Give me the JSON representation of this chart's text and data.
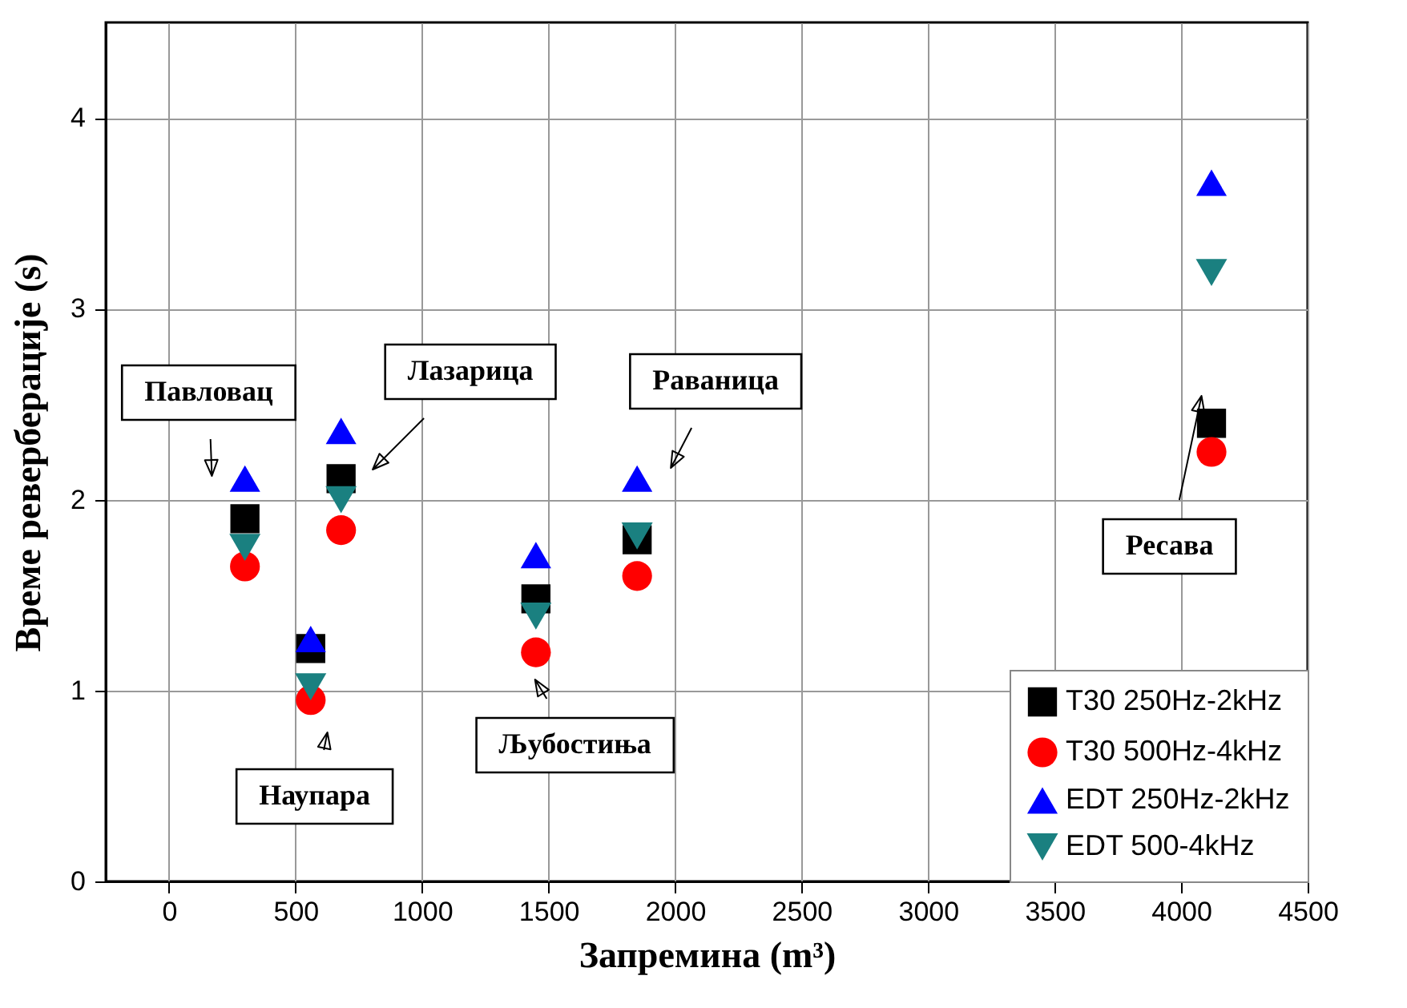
{
  "chart_data": {
    "type": "scatter",
    "xlabel": "Запремина (m³)",
    "ylabel": "Време реверберације (s)",
    "xlim": [
      -250,
      4500
    ],
    "ylim": [
      0,
      4.5
    ],
    "xticks": [
      0,
      500,
      1000,
      1500,
      2000,
      2500,
      3000,
      3500,
      4000,
      4500
    ],
    "yticks": [
      0,
      1,
      2,
      3,
      4
    ],
    "grid": true,
    "legend": "bottom right",
    "x": [
      300,
      560,
      680,
      1450,
      1850,
      4120
    ],
    "series": [
      {
        "name": "T30 250Hz-2kHz",
        "color": "#000000",
        "marker": "square",
        "values": [
          1.9,
          1.22,
          2.11,
          1.48,
          1.79,
          2.4
        ]
      },
      {
        "name": "T30 500Hz-4kHz",
        "color": "#ff0000",
        "marker": "circle",
        "values": [
          1.65,
          0.95,
          1.84,
          1.2,
          1.6,
          2.25
        ]
      },
      {
        "name": "EDT 250Hz-2kHz",
        "color": "#0000ff",
        "marker": "triangle",
        "values": [
          2.11,
          1.27,
          2.36,
          1.71,
          2.11,
          3.66
        ]
      },
      {
        "name": "EDT 500-4kHz",
        "color": "#1a8080",
        "marker": "triangle-down",
        "values": [
          1.75,
          1.02,
          2.0,
          1.39,
          1.81,
          3.19
        ]
      }
    ],
    "annotations": [
      "Павловац",
      "Наупара",
      "Лазарица",
      "Љубостиња",
      "Раваница",
      "Ресава"
    ]
  }
}
